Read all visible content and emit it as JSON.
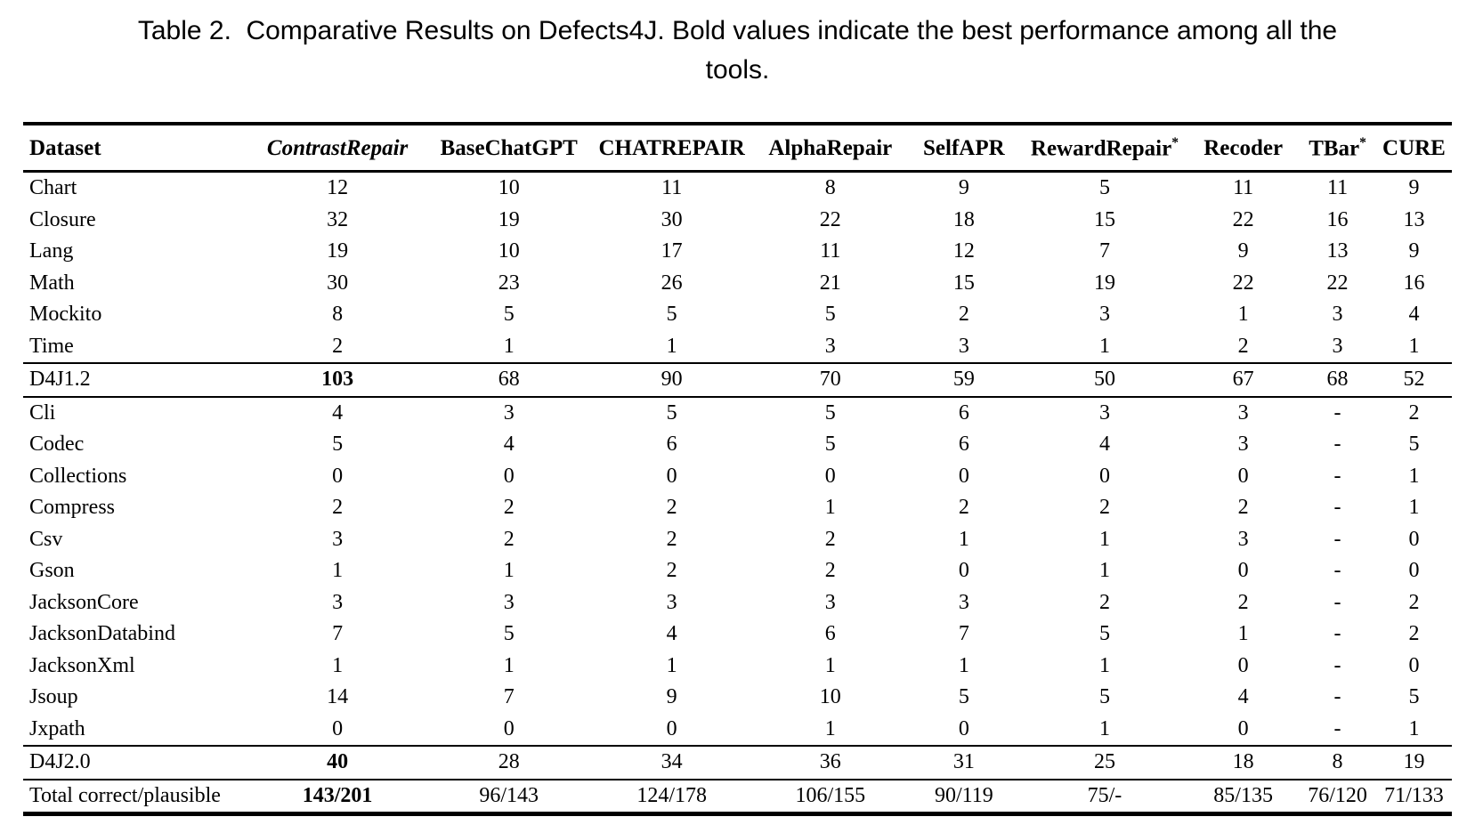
{
  "caption": {
    "label": "Table 2.",
    "line1": "Comparative Results on Defects4J. Bold values indicate the best performance among all the",
    "line2": "tools."
  },
  "table": {
    "columns": [
      {
        "label": "Dataset",
        "sup": ""
      },
      {
        "label": "ContrastRepair",
        "sup": ""
      },
      {
        "label": "BaseChatGPT",
        "sup": ""
      },
      {
        "label": "CHATREPAIR",
        "sup": ""
      },
      {
        "label": "AlphaRepair",
        "sup": ""
      },
      {
        "label": "SelfAPR",
        "sup": ""
      },
      {
        "label": "RewardRepair",
        "sup": "*"
      },
      {
        "label": "Recoder",
        "sup": ""
      },
      {
        "label": "TBar",
        "sup": "*"
      },
      {
        "label": "CURE",
        "sup": ""
      }
    ],
    "sections": [
      {
        "name": "d4j12-projects",
        "rows": [
          {
            "dataset": "Chart",
            "values": [
              "12",
              "10",
              "11",
              "8",
              "9",
              "5",
              "11",
              "11",
              "9"
            ]
          },
          {
            "dataset": "Closure",
            "values": [
              "32",
              "19",
              "30",
              "22",
              "18",
              "15",
              "22",
              "16",
              "13"
            ]
          },
          {
            "dataset": "Lang",
            "values": [
              "19",
              "10",
              "17",
              "11",
              "12",
              "7",
              "9",
              "13",
              "9"
            ]
          },
          {
            "dataset": "Math",
            "values": [
              "30",
              "23",
              "26",
              "21",
              "15",
              "19",
              "22",
              "22",
              "16"
            ]
          },
          {
            "dataset": "Mockito",
            "values": [
              "8",
              "5",
              "5",
              "5",
              "2",
              "3",
              "1",
              "3",
              "4"
            ]
          },
          {
            "dataset": "Time",
            "values": [
              "2",
              "1",
              "1",
              "3",
              "3",
              "1",
              "2",
              "3",
              "1"
            ]
          }
        ]
      },
      {
        "name": "d4j12-summary",
        "rows": [
          {
            "dataset": "D4J1.2",
            "values": [
              "103",
              "68",
              "90",
              "70",
              "59",
              "50",
              "67",
              "68",
              "52"
            ],
            "bold_values": [
              0
            ]
          }
        ]
      },
      {
        "name": "d4j20-projects",
        "rows": [
          {
            "dataset": "Cli",
            "values": [
              "4",
              "3",
              "5",
              "5",
              "6",
              "3",
              "3",
              "-",
              "2"
            ]
          },
          {
            "dataset": "Codec",
            "values": [
              "5",
              "4",
              "6",
              "5",
              "6",
              "4",
              "3",
              "-",
              "5"
            ]
          },
          {
            "dataset": "Collections",
            "values": [
              "0",
              "0",
              "0",
              "0",
              "0",
              "0",
              "0",
              "-",
              "1"
            ]
          },
          {
            "dataset": "Compress",
            "values": [
              "2",
              "2",
              "2",
              "1",
              "2",
              "2",
              "2",
              "-",
              "1"
            ]
          },
          {
            "dataset": "Csv",
            "values": [
              "3",
              "2",
              "2",
              "2",
              "1",
              "1",
              "3",
              "-",
              "0"
            ]
          },
          {
            "dataset": "Gson",
            "values": [
              "1",
              "1",
              "2",
              "2",
              "0",
              "1",
              "0",
              "-",
              "0"
            ]
          },
          {
            "dataset": "JacksonCore",
            "values": [
              "3",
              "3",
              "3",
              "3",
              "3",
              "2",
              "2",
              "-",
              "2"
            ]
          },
          {
            "dataset": "JacksonDatabind",
            "values": [
              "7",
              "5",
              "4",
              "6",
              "7",
              "5",
              "1",
              "-",
              "2"
            ]
          },
          {
            "dataset": "JacksonXml",
            "values": [
              "1",
              "1",
              "1",
              "1",
              "1",
              "1",
              "0",
              "-",
              "0"
            ]
          },
          {
            "dataset": "Jsoup",
            "values": [
              "14",
              "7",
              "9",
              "10",
              "5",
              "5",
              "4",
              "-",
              "5"
            ]
          },
          {
            "dataset": "Jxpath",
            "values": [
              "0",
              "0",
              "0",
              "1",
              "0",
              "1",
              "0",
              "-",
              "1"
            ]
          }
        ]
      },
      {
        "name": "d4j20-summary",
        "rows": [
          {
            "dataset": "D4J2.0",
            "values": [
              "40",
              "28",
              "34",
              "36",
              "31",
              "25",
              "18",
              "8",
              "19"
            ],
            "bold_values": [
              0
            ]
          }
        ]
      },
      {
        "name": "totals",
        "rows": [
          {
            "dataset": "Total correct/plausible",
            "values": [
              "143/201",
              "96/143",
              "124/178",
              "106/155",
              "90/119",
              "75/-",
              "85/135",
              "76/120",
              "71/133"
            ],
            "bold_values": [
              0
            ]
          }
        ]
      }
    ]
  }
}
